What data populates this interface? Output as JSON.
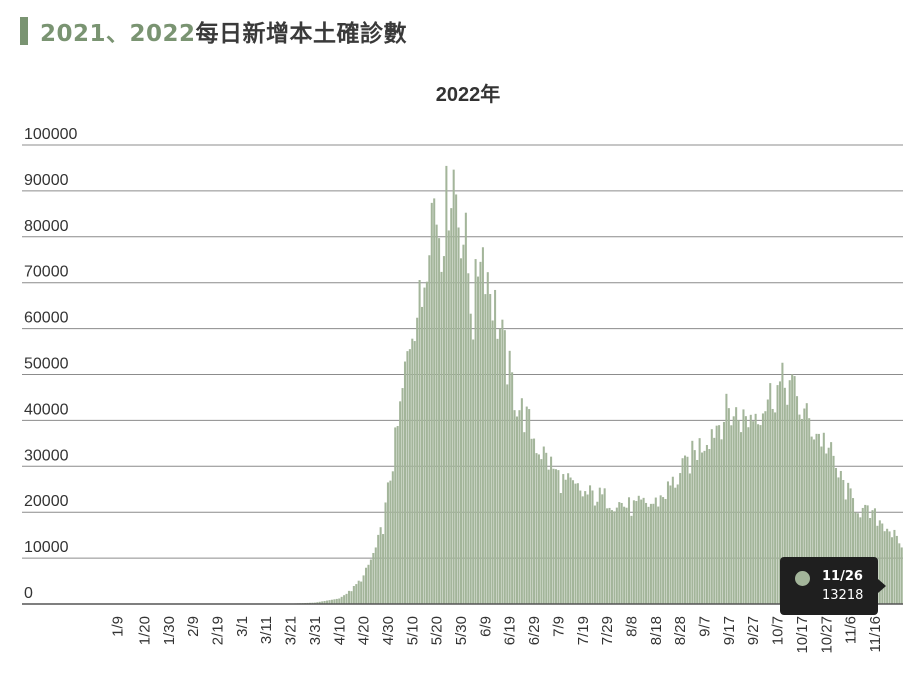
{
  "page": {
    "header_year_part": "2021、2022",
    "header_rest": "每日新增本土確診數",
    "accent_color": "#7a9472"
  },
  "chart_data": {
    "type": "bar",
    "title": "2022年",
    "xlabel": "",
    "ylabel": "",
    "ylim": [
      0,
      100000
    ],
    "y_ticks": [
      0,
      10000,
      20000,
      30000,
      40000,
      50000,
      60000,
      70000,
      80000,
      90000,
      100000
    ],
    "x_tick_labels": [
      "1/9",
      "1/20",
      "1/30",
      "2/9",
      "2/19",
      "3/1",
      "3/11",
      "3/21",
      "3/31",
      "4/10",
      "4/20",
      "4/30",
      "5/10",
      "5/20",
      "5/30",
      "6/9",
      "6/19",
      "6/29",
      "7/9",
      "7/19",
      "7/29",
      "8/8",
      "8/18",
      "8/28",
      "9/7",
      "9/17",
      "9/27",
      "10/7",
      "10/17",
      "10/27",
      "11/6",
      "11/16"
    ],
    "start_date": "2022-01-01",
    "end_date": "2022-11-27",
    "bar_color": "#a3b59a",
    "grid": true,
    "anchors": [
      [
        "2022-01-01",
        20
      ],
      [
        "2022-03-20",
        60
      ],
      [
        "2022-03-31",
        300
      ],
      [
        "2022-04-10",
        1200
      ],
      [
        "2022-04-15",
        3000
      ],
      [
        "2022-04-20",
        6000
      ],
      [
        "2022-04-25",
        12000
      ],
      [
        "2022-04-28",
        17000
      ],
      [
        "2022-05-01",
        28000
      ],
      [
        "2022-05-04",
        38000
      ],
      [
        "2022-05-07",
        50000
      ],
      [
        "2022-05-10",
        62000
      ],
      [
        "2022-05-14",
        66000
      ],
      [
        "2022-05-17",
        85000
      ],
      [
        "2022-05-19",
        88000
      ],
      [
        "2022-05-22",
        80000
      ],
      [
        "2022-05-25",
        90000
      ],
      [
        "2022-05-27",
        94000
      ],
      [
        "2022-05-29",
        85000
      ],
      [
        "2022-06-01",
        78000
      ],
      [
        "2022-06-04",
        62000
      ],
      [
        "2022-06-07",
        80000
      ],
      [
        "2022-06-10",
        72000
      ],
      [
        "2022-06-14",
        62000
      ],
      [
        "2022-06-18",
        52000
      ],
      [
        "2022-06-22",
        44000
      ],
      [
        "2022-06-26",
        40000
      ],
      [
        "2022-06-30",
        35000
      ],
      [
        "2022-07-05",
        31000
      ],
      [
        "2022-07-10",
        27000
      ],
      [
        "2022-07-19",
        24000
      ],
      [
        "2022-07-29",
        23000
      ],
      [
        "2022-08-08",
        21000
      ],
      [
        "2022-08-18",
        22000
      ],
      [
        "2022-08-28",
        28000
      ],
      [
        "2022-09-03",
        33000
      ],
      [
        "2022-09-10",
        38000
      ],
      [
        "2022-09-17",
        42000
      ],
      [
        "2022-09-24",
        40000
      ],
      [
        "2022-09-30",
        43000
      ],
      [
        "2022-10-07",
        47000
      ],
      [
        "2022-10-12",
        48000
      ],
      [
        "2022-10-17",
        42000
      ],
      [
        "2022-10-22",
        38000
      ],
      [
        "2022-10-27",
        35000
      ],
      [
        "2022-11-01",
        28000
      ],
      [
        "2022-11-06",
        23000
      ],
      [
        "2022-11-11",
        20000
      ],
      [
        "2022-11-16",
        19000
      ],
      [
        "2022-11-21",
        17000
      ],
      [
        "2022-11-26",
        13218
      ],
      [
        "2022-11-27",
        13000
      ]
    ],
    "tooltip": {
      "date": "11/26",
      "value": "13218"
    }
  }
}
